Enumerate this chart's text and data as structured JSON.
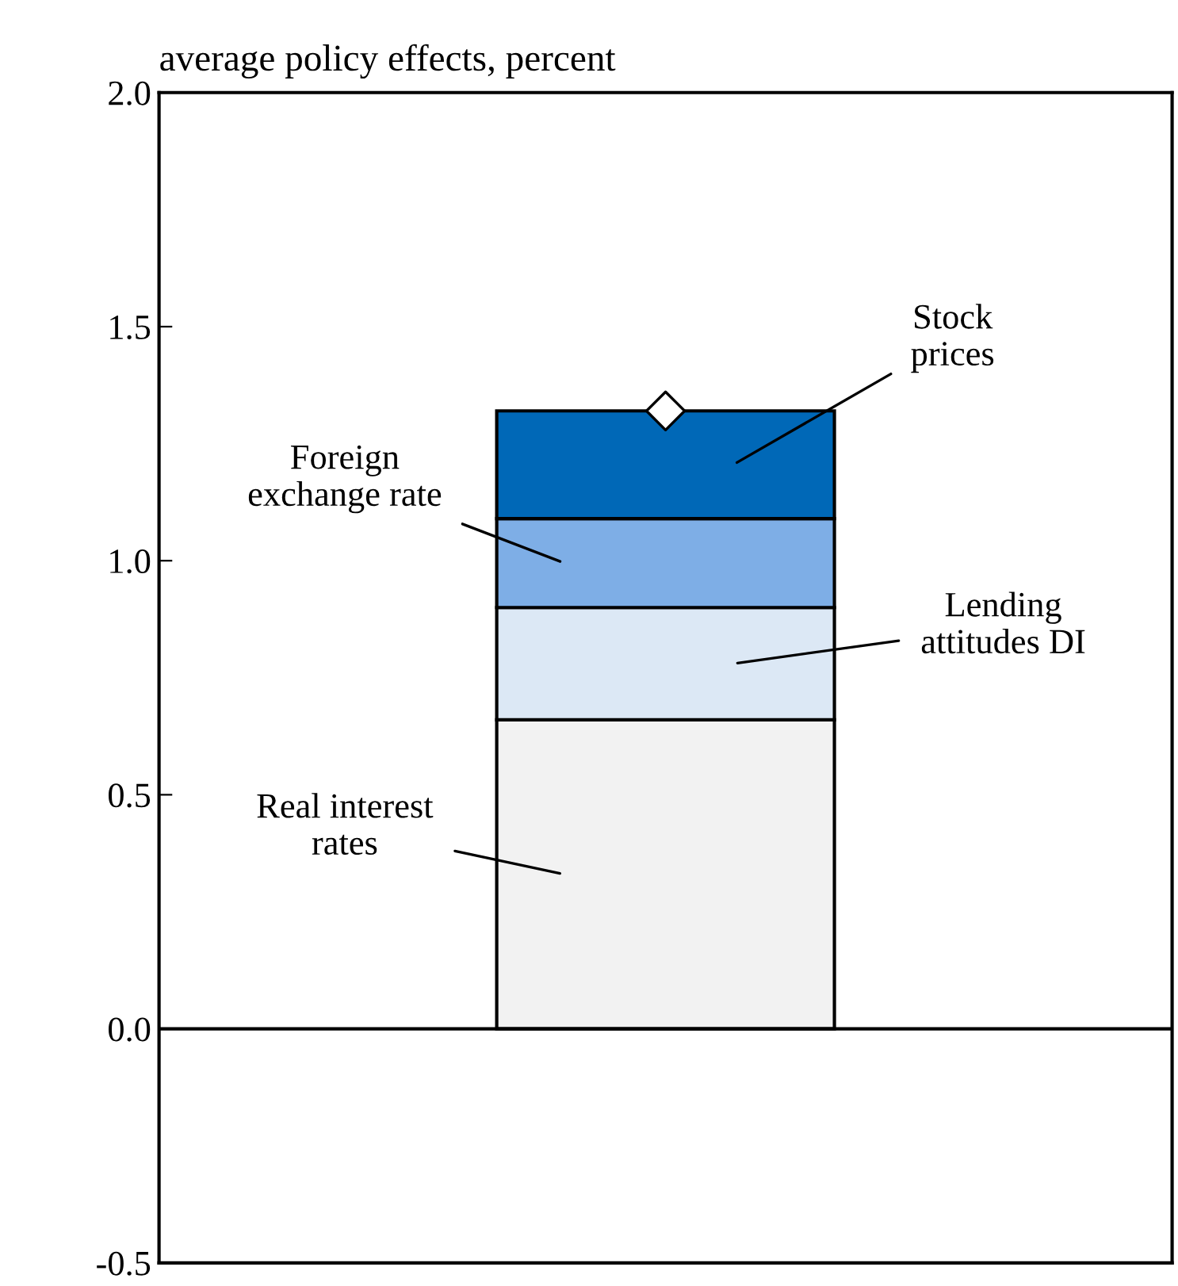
{
  "chart_data": {
    "type": "bar",
    "title": "average policy effects, percent",
    "stacked": true,
    "categories": [
      null
    ],
    "series": [
      {
        "name": "Real interest rates",
        "color": "#f2f2f2",
        "values": [
          0.66
        ]
      },
      {
        "name": "Lending attitudes DI",
        "color": "#dce8f5",
        "values": [
          0.24
        ]
      },
      {
        "name": "Foreign exchange rate",
        "color": "#7eaee6",
        "values": [
          0.19
        ]
      },
      {
        "name": "Stock prices",
        "color": "#0068b7",
        "values": [
          0.23
        ]
      },
      {
        "type": "scatter",
        "color": "#ffffff",
        "marker": "diamond",
        "values": [
          1.32
        ]
      }
    ],
    "ylim": [
      -0.5,
      2.0
    ],
    "yticks": [
      {
        "value": -0.5,
        "label": "-0.5"
      },
      {
        "value": 0.0,
        "label": "0.0"
      },
      {
        "value": 0.5,
        "label": "0.5"
      },
      {
        "value": 1.0,
        "label": "1.0"
      },
      {
        "value": 1.5,
        "label": "1.5"
      },
      {
        "value": 2.0,
        "label": "2.0"
      }
    ],
    "ref_lines": [
      {
        "axis": "y",
        "value": 0,
        "color": "#000000"
      }
    ],
    "grid": false,
    "legend": false
  }
}
